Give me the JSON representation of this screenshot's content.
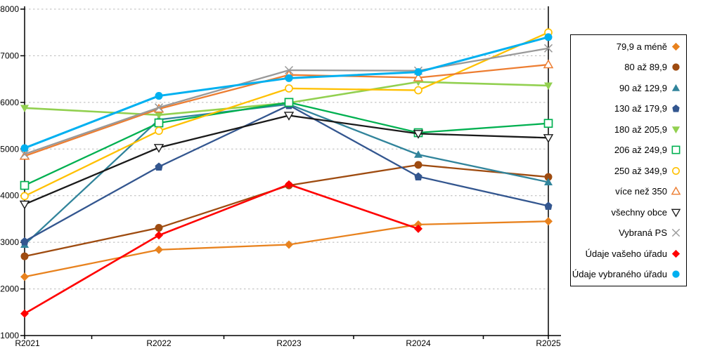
{
  "chart_data": {
    "type": "line",
    "categories": [
      "R2021",
      "R2022",
      "R2023",
      "R2024",
      "R2025"
    ],
    "y_ticks": [
      "1000",
      "2000",
      "3000",
      "4000",
      "5000",
      "6000",
      "7000",
      "8000"
    ],
    "ylim": [
      1000,
      8000
    ],
    "ytick_step": 1000,
    "grid": "horizontal-dashed",
    "gridline_color": "#b8b8b8",
    "axis_color": "#000000",
    "legend_position": "right",
    "series": [
      {
        "name": "79,9 a méně",
        "color": "#E8821E",
        "marker": "diamond-filled",
        "values": [
          2260,
          2840,
          2950,
          3380,
          3450
        ]
      },
      {
        "name": "80 až 89,9",
        "color": "#9E4B10",
        "marker": "circle-filled",
        "values": [
          2700,
          3310,
          4220,
          4660,
          4400
        ]
      },
      {
        "name": "90 až 129,9",
        "color": "#31849B",
        "marker": "triangle-up-filled",
        "values": [
          2950,
          5630,
          5960,
          4880,
          4290
        ]
      },
      {
        "name": "130 až 179,9",
        "color": "#33568F",
        "marker": "pentagon-filled",
        "values": [
          3020,
          4620,
          5940,
          4410,
          3780
        ]
      },
      {
        "name": "180 až 205,9",
        "color": "#92D050",
        "marker": "triangle-down-filled",
        "values": [
          5880,
          5730,
          5990,
          6440,
          6360
        ]
      },
      {
        "name": "206 až 249,9",
        "color": "#00B050",
        "marker": "square-outline",
        "values": [
          4220,
          5560,
          6000,
          5350,
          5550
        ]
      },
      {
        "name": "250 až 349,9",
        "color": "#FFC000",
        "marker": "circle-outline",
        "values": [
          3990,
          5390,
          6300,
          6260,
          7500
        ]
      },
      {
        "name": "více než 350",
        "color": "#ED7D31",
        "marker": "triangle-up-outline",
        "values": [
          4850,
          5860,
          6590,
          6530,
          6810
        ]
      },
      {
        "name": "všechny obce",
        "color": "#1A1A1A",
        "marker": "triangle-down-outline",
        "values": [
          3815,
          5030,
          5720,
          5330,
          5240
        ]
      },
      {
        "name": "Vybraná PS",
        "color": "#999999",
        "marker": "x",
        "values": [
          4890,
          5890,
          6690,
          6680,
          7160
        ]
      },
      {
        "name": "Údaje vašeho úřadu",
        "color": "#FF0000",
        "marker": "diamond-filled",
        "values": [
          1470,
          3150,
          4240,
          3290,
          null
        ]
      },
      {
        "name": "Údaje vybraného úřadu",
        "color": "#00B0F0",
        "marker": "circle-filled",
        "values": [
          5020,
          6140,
          6520,
          6650,
          7400
        ]
      }
    ]
  }
}
